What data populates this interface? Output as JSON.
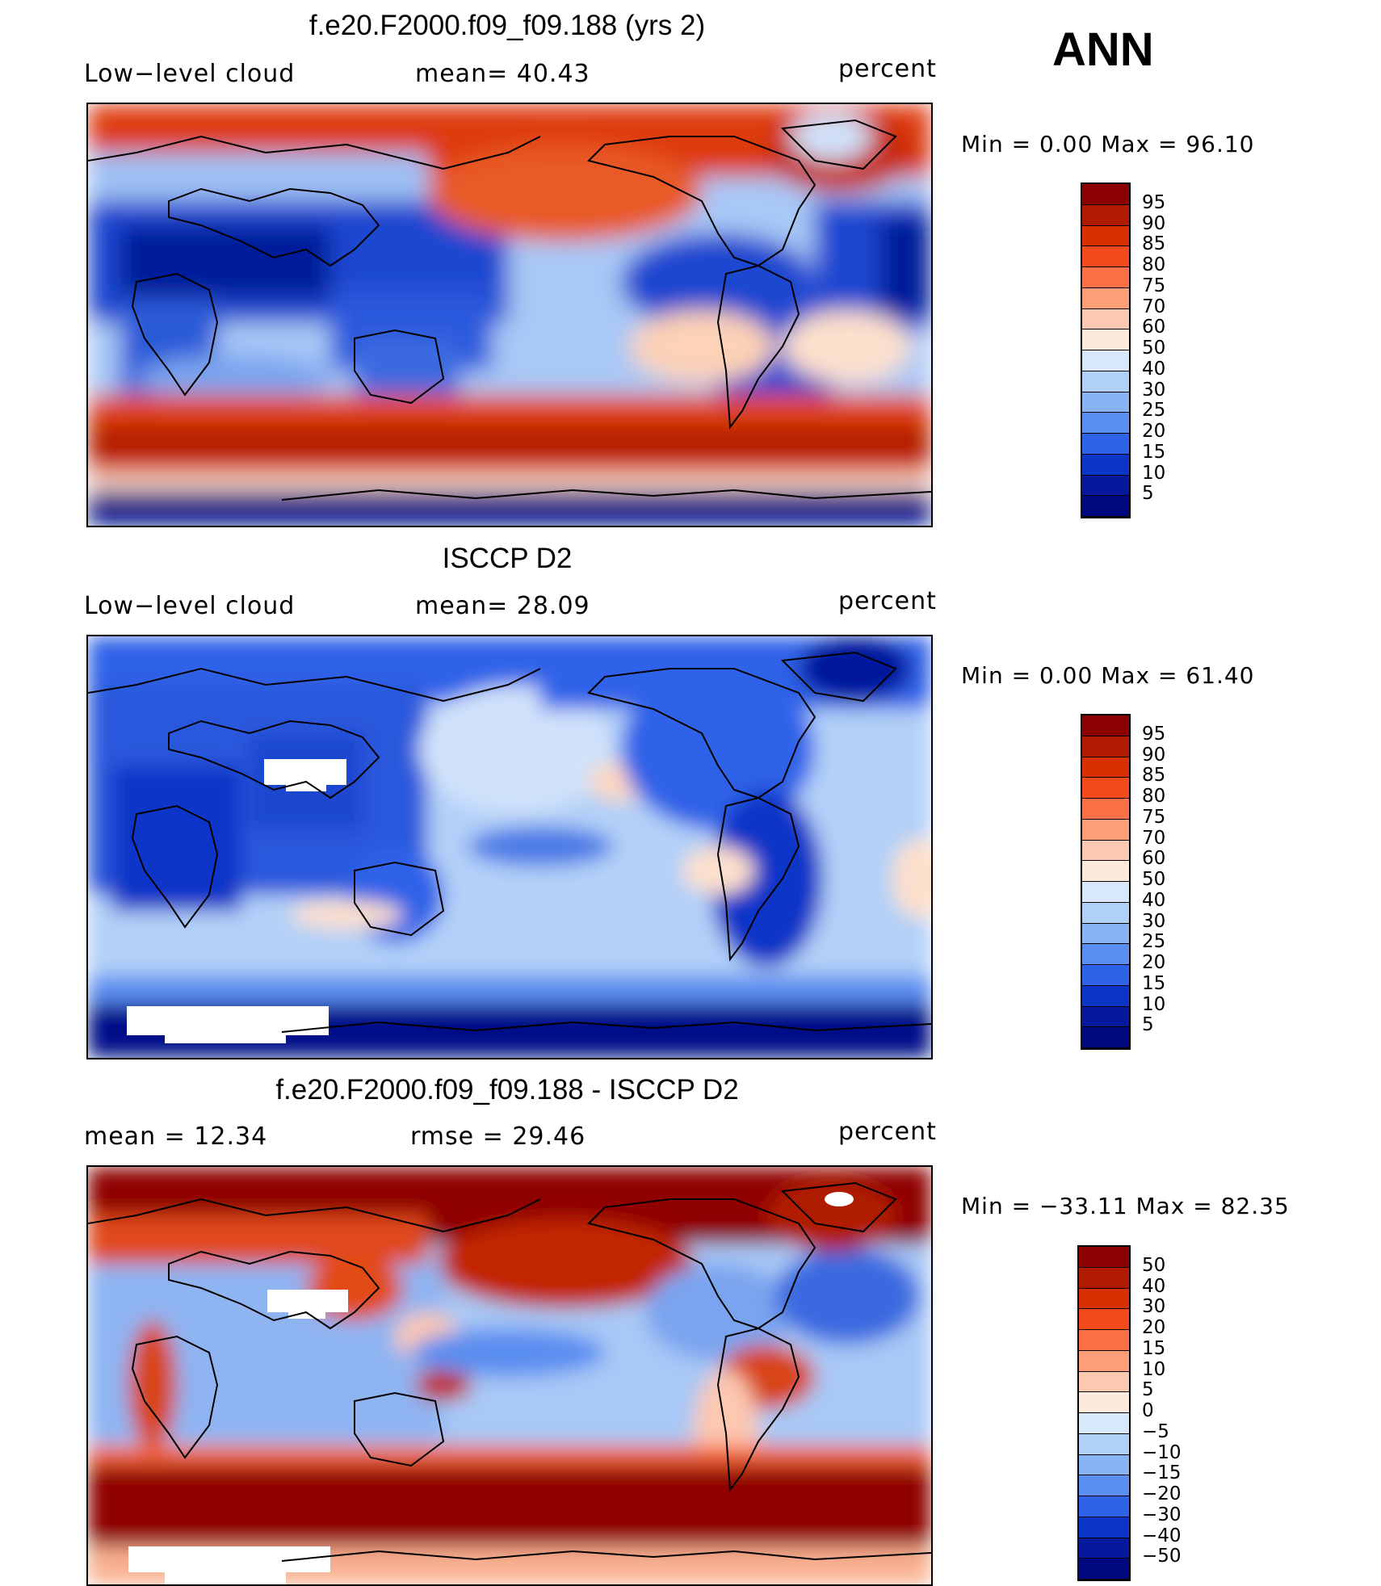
{
  "season": "ANN",
  "panels": [
    {
      "title": "f.e20.F2000.f09_f09.188 (yrs 2)",
      "left_label": "Low−level cloud",
      "center_label": "mean=   40.43",
      "right_label": "percent",
      "minmax": "Min  =     0.00  Max  =    96.10"
    },
    {
      "title": "ISCCP D2",
      "left_label": "Low−level cloud",
      "center_label": "mean=   28.09",
      "right_label": "percent",
      "minmax": "Min  =     0.00  Max  =    61.40"
    },
    {
      "title": "f.e20.F2000.f09_f09.188 - ISCCP D2",
      "left_label": "mean  =    12.34",
      "center_label": "rmse  =    29.46",
      "right_label": "percent",
      "minmax": "Min  = −33.11  Max  =    82.35"
    }
  ],
  "chart_data": [
    {
      "type": "heatmap",
      "title": "f.e20.F2000.f09_f09.188 (yrs 2)",
      "variable": "Low-level cloud",
      "units": "percent",
      "mean": 40.43,
      "min": 0.0,
      "max": 96.1,
      "colorbar_levels": [
        "95",
        "90",
        "85",
        "80",
        "75",
        "70",
        "60",
        "50",
        "40",
        "30",
        "25",
        "20",
        "15",
        "10",
        "5"
      ],
      "colors": [
        "#8b0000",
        "#b01a00",
        "#d83000",
        "#f24a1a",
        "#fc7048",
        "#fc9f78",
        "#fdc8b0",
        "#fdeadd",
        "#d8e8fb",
        "#b0d0f8",
        "#88b4f4",
        "#5a8ef0",
        "#2e62e8",
        "#0c36c8",
        "#06189c",
        "#000880"
      ]
    },
    {
      "type": "heatmap",
      "title": "ISCCP D2",
      "variable": "Low-level cloud",
      "units": "percent",
      "mean": 28.09,
      "min": 0.0,
      "max": 61.4,
      "colorbar_levels": [
        "95",
        "90",
        "85",
        "80",
        "75",
        "70",
        "60",
        "50",
        "40",
        "30",
        "25",
        "20",
        "15",
        "10",
        "5"
      ],
      "colors": [
        "#8b0000",
        "#b01a00",
        "#d83000",
        "#f24a1a",
        "#fc7048",
        "#fc9f78",
        "#fdc8b0",
        "#fdeadd",
        "#d8e8fb",
        "#b0d0f8",
        "#88b4f4",
        "#5a8ef0",
        "#2e62e8",
        "#0c36c8",
        "#06189c",
        "#000880"
      ]
    },
    {
      "type": "heatmap",
      "title": "f.e20.F2000.f09_f09.188 - ISCCP D2",
      "units": "percent",
      "mean": 12.34,
      "rmse": 29.46,
      "min": -33.11,
      "max": 82.35,
      "colorbar_levels": [
        "50",
        "40",
        "30",
        "20",
        "15",
        "10",
        "5",
        "0",
        "−5",
        "−10",
        "−15",
        "−20",
        "−30",
        "−40",
        "−50"
      ],
      "colors": [
        "#8b0000",
        "#b01a00",
        "#d83000",
        "#f24a1a",
        "#fc7048",
        "#fc9f78",
        "#fdc8b0",
        "#fdeadd",
        "#d8e8fb",
        "#b0d0f8",
        "#88b4f4",
        "#5a8ef0",
        "#2e62e8",
        "#0c36c8",
        "#06189c",
        "#000880"
      ]
    }
  ]
}
